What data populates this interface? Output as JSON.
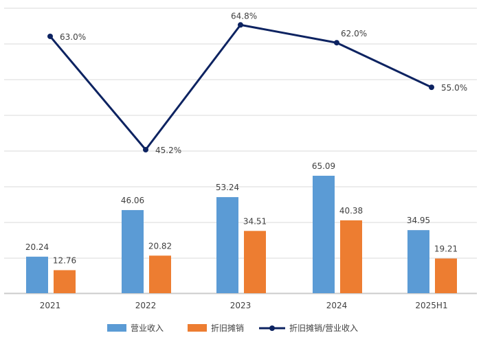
{
  "chart_data": {
    "type": "bar",
    "categories": [
      "2021",
      "2022",
      "2023",
      "2024",
      "2025H1"
    ],
    "series": [
      {
        "name": "营业收入",
        "kind": "bar",
        "color": "#5B9BD5",
        "values": [
          20.24,
          46.06,
          53.24,
          65.09,
          34.95
        ]
      },
      {
        "name": "折旧摊销",
        "kind": "bar",
        "color": "#ED7D31",
        "values": [
          12.76,
          20.82,
          34.51,
          40.38,
          19.21
        ]
      },
      {
        "name": "折旧摊销/营业收入",
        "kind": "line",
        "color": "#0D2361",
        "values": [
          63.0,
          45.2,
          64.8,
          62.0,
          55.0
        ],
        "labels": [
          "63.0%",
          "45.2%",
          "64.8%",
          "62.0%",
          "55.0%"
        ]
      }
    ],
    "bar_labels": [
      [
        "20.24",
        "46.06",
        "53.24",
        "65.09",
        "34.95"
      ],
      [
        "12.76",
        "20.82",
        "34.51",
        "40.38",
        "19.21"
      ]
    ],
    "grid": true,
    "legend": "bottom",
    "title": "",
    "xlabel": "",
    "ylabel": ""
  }
}
